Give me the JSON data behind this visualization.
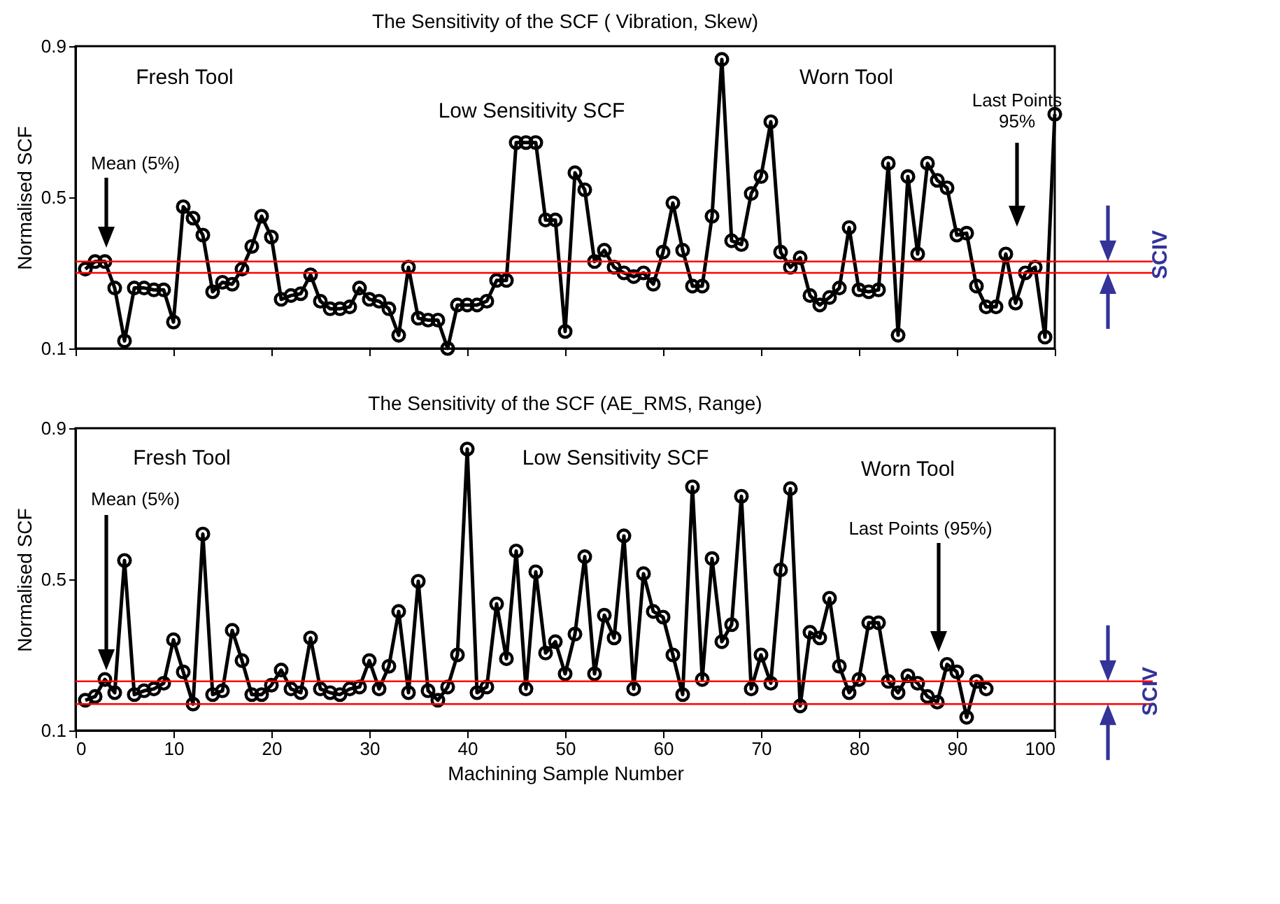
{
  "chart_data": [
    {
      "type": "line",
      "title": "The Sensitivity of the SCF ( Vibration, Skew)",
      "ylabel": "Normalised SCF",
      "marker": "circle",
      "tick_labels": "y",
      "xlim": [
        0,
        100
      ],
      "xticks": [
        0,
        10,
        20,
        30,
        40,
        50,
        60,
        70,
        80,
        90,
        100
      ],
      "ylim": [
        0.1,
        0.9
      ],
      "yticks": [
        0.1,
        0.5,
        0.9
      ],
      "x": [
        1,
        2,
        3,
        4,
        5,
        6,
        7,
        8,
        9,
        10,
        11,
        12,
        13,
        14,
        15,
        16,
        17,
        18,
        19,
        20,
        21,
        22,
        23,
        24,
        25,
        26,
        27,
        28,
        29,
        30,
        31,
        32,
        33,
        34,
        35,
        36,
        37,
        38,
        39,
        40,
        41,
        42,
        43,
        44,
        45,
        46,
        47,
        48,
        49,
        50,
        51,
        52,
        53,
        54,
        55,
        56,
        57,
        58,
        59,
        60,
        61,
        62,
        63,
        64,
        65,
        66,
        67,
        68,
        69,
        70,
        71,
        72,
        73,
        74,
        75,
        76,
        77,
        78,
        79,
        80,
        81,
        82,
        83,
        84,
        85,
        86,
        87,
        88,
        89,
        90,
        91,
        92,
        93,
        94,
        95,
        96,
        97,
        98,
        99,
        100
      ],
      "series": [
        {
          "color": "#000000",
          "line_style": "solid",
          "values": [
            0.31,
            0.33,
            0.33,
            0.26,
            0.12,
            0.26,
            0.26,
            0.255,
            0.255,
            0.17,
            0.475,
            0.445,
            0.4,
            0.25,
            0.275,
            0.27,
            0.31,
            0.37,
            0.45,
            0.395,
            0.23,
            0.24,
            0.245,
            0.295,
            0.225,
            0.205,
            0.205,
            0.21,
            0.26,
            0.23,
            0.225,
            0.205,
            0.135,
            0.315,
            0.18,
            0.175,
            0.175,
            0.1,
            0.215,
            0.215,
            0.215,
            0.225,
            0.28,
            0.28,
            0.645,
            0.645,
            0.645,
            0.44,
            0.44,
            0.145,
            0.565,
            0.52,
            0.33,
            0.36,
            0.315,
            0.3,
            0.29,
            0.3,
            0.27,
            0.355,
            0.485,
            0.36,
            0.265,
            0.265,
            0.45,
            0.865,
            0.385,
            0.375,
            0.51,
            0.555,
            0.7,
            0.355,
            0.315,
            0.34,
            0.24,
            0.215,
            0.235,
            0.26,
            0.42,
            0.255,
            0.25,
            0.255,
            0.59,
            0.135,
            0.555,
            0.35,
            0.59,
            0.545,
            0.525,
            0.4,
            0.405,
            0.265,
            0.21,
            0.21,
            0.35,
            0.22,
            0.3,
            0.315,
            0.13,
            0.72
          ]
        }
      ],
      "ref_lines": [
        {
          "axis": "y",
          "value": 0.3,
          "color": "#ff0000"
        },
        {
          "axis": "y",
          "value": 0.33,
          "color": "#ff0000"
        }
      ],
      "annotations": [
        "Fresh Tool",
        "Low Sensitivity SCF",
        "Worn Tool",
        "SCIV",
        "Mean (5%)",
        "Last Points\n95%"
      ]
    },
    {
      "type": "line",
      "title": "The Sensitivity of the SCF (AE_RMS, Range)",
      "xlabel": "Machining Sample Number",
      "ylabel": "Normalised SCF",
      "marker": "circle",
      "xlim": [
        0,
        100
      ],
      "xticks": [
        0,
        10,
        20,
        30,
        40,
        50,
        60,
        70,
        80,
        90,
        100
      ],
      "ylim": [
        0.1,
        0.9
      ],
      "yticks": [
        0.1,
        0.5,
        0.9
      ],
      "x": [
        1,
        2,
        3,
        4,
        5,
        6,
        7,
        8,
        9,
        10,
        11,
        12,
        13,
        14,
        15,
        16,
        17,
        18,
        19,
        20,
        21,
        22,
        23,
        24,
        25,
        26,
        27,
        28,
        29,
        30,
        31,
        32,
        33,
        34,
        35,
        36,
        37,
        38,
        39,
        40,
        41,
        42,
        43,
        44,
        45,
        46,
        47,
        48,
        49,
        50,
        51,
        52,
        53,
        54,
        55,
        56,
        57,
        58,
        59,
        60,
        61,
        62,
        63,
        64,
        65,
        66,
        67,
        68,
        69,
        70,
        71,
        72,
        73,
        74,
        75,
        76,
        77,
        78,
        79,
        80,
        81,
        82,
        83,
        84,
        85,
        86,
        87,
        88,
        89,
        90,
        91,
        92,
        93
      ],
      "series": [
        {
          "color": "#000000",
          "line_style": "solid",
          "values": [
            0.18,
            0.19,
            0.235,
            0.2,
            0.55,
            0.195,
            0.205,
            0.21,
            0.225,
            0.34,
            0.255,
            0.17,
            0.62,
            0.195,
            0.205,
            0.365,
            0.285,
            0.195,
            0.195,
            0.22,
            0.26,
            0.21,
            0.2,
            0.345,
            0.21,
            0.2,
            0.195,
            0.21,
            0.215,
            0.285,
            0.21,
            0.27,
            0.415,
            0.2,
            0.495,
            0.205,
            0.18,
            0.215,
            0.3,
            0.845,
            0.2,
            0.215,
            0.435,
            0.29,
            0.575,
            0.21,
            0.52,
            0.305,
            0.335,
            0.25,
            0.355,
            0.56,
            0.25,
            0.405,
            0.345,
            0.615,
            0.21,
            0.515,
            0.415,
            0.4,
            0.3,
            0.195,
            0.745,
            0.235,
            0.555,
            0.335,
            0.38,
            0.72,
            0.21,
            0.3,
            0.225,
            0.525,
            0.74,
            0.165,
            0.36,
            0.345,
            0.45,
            0.27,
            0.2,
            0.235,
            0.385,
            0.385,
            0.23,
            0.2,
            0.245,
            0.225,
            0.19,
            0.175,
            0.275,
            0.255,
            0.135,
            0.23,
            0.21
          ]
        }
      ],
      "ref_lines": [
        {
          "axis": "y",
          "value": 0.17,
          "color": "#ff0000"
        },
        {
          "axis": "y",
          "value": 0.23,
          "color": "#ff0000"
        }
      ],
      "annotations": [
        "Fresh Tool",
        "Low Sensitivity SCF",
        "Worn Tool",
        "SCIV",
        "Mean (5%)",
        "Last Points (95%)"
      ]
    }
  ]
}
